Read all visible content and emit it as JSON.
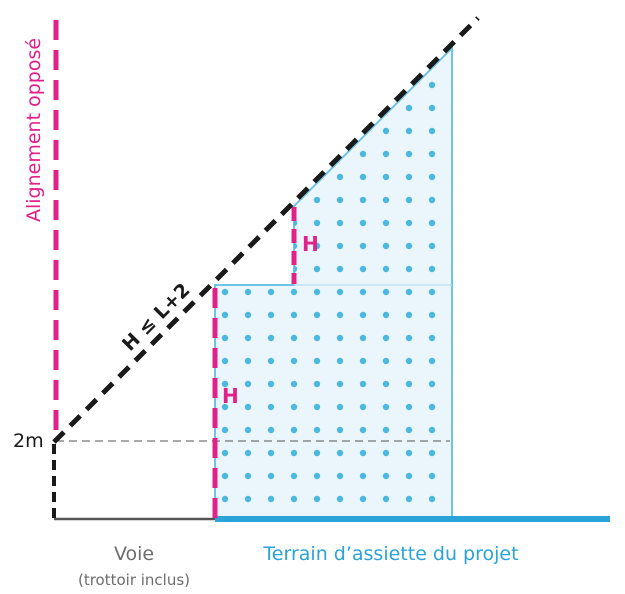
{
  "labels": {
    "alignement": "Alignement opposé",
    "formula": "H ≤ L+2",
    "two_m": "2m",
    "h_upper": "H",
    "h_lower": "H",
    "voie": "Voie",
    "voie_sub": "(trottoir inclus)",
    "terrain": "Terrain d’assiette du projet"
  },
  "colors": {
    "magenta": "#e0218a",
    "blue": "#29a3d8",
    "light_blue_fill": "#eaf6fc",
    "dots": "#4cb8e0",
    "dark": "#1a1a1a",
    "grey": "#6d6d6d"
  }
}
